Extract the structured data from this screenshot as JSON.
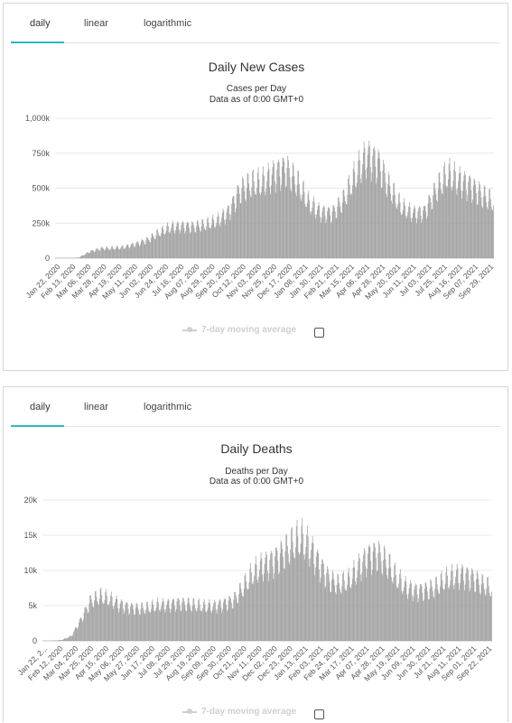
{
  "panels": [
    {
      "tabs": [
        "daily",
        "linear",
        "logarithmic"
      ],
      "active_tab": "daily",
      "legend_label": "7-day moving average",
      "chart_data": {
        "type": "bar",
        "title": "Daily New Cases",
        "subtitle_line1": "Cases per Day",
        "subtitle_line2": "Data as of 0:00 GMT+0",
        "ylim": [
          0,
          1000000
        ],
        "y_ticks": [
          0,
          250000,
          500000,
          750000,
          1000000
        ],
        "y_tick_labels": [
          "0",
          "250k",
          "500k",
          "750k",
          "1,000k"
        ],
        "x_tick_labels": [
          "Jan 22, 2020",
          "Feb 13, 2020",
          "Mar 06, 2020",
          "Mar 28, 2020",
          "Apr 19, 2020",
          "May 11, 2020",
          "Jun 02, 2020",
          "Jun 24, 2020",
          "Jul 16, 2020",
          "Aug 07, 2020",
          "Aug 29, 2020",
          "Sep 20, 2020",
          "Oct 12, 2020",
          "Nov 03, 2020",
          "Nov 25, 2020",
          "Dec 17, 2020",
          "Jan 08, 2021",
          "Jan 30, 2021",
          "Feb 21, 2021",
          "Mar 15, 2021",
          "Apr 06, 2021",
          "Apr 28, 2021",
          "May 20, 2021",
          "Jun 11, 2021",
          "Jul 03, 2021",
          "Jul 25, 2021",
          "Aug 16, 2021",
          "Sep 07, 2021",
          "Sep 29, 2021"
        ],
        "grid": true,
        "series": [
          {
            "color": "#9e9e9e",
            "period_averages": [
              1000,
              2000,
              4000,
              55000,
              80000,
              82000,
              92000,
              118000,
              150000,
              210000,
              255000,
              265000,
              262000,
              275000,
              305000,
              380000,
              560000,
              610000,
              620000,
              700000,
              740000,
              620000,
              450000,
              380000,
              370000,
              480000,
              680000,
              845000,
              790000,
              580000,
              420000,
              370000,
              380000,
              560000,
              690000,
              640000,
              600000,
              520000,
              460000
            ]
          }
        ]
      }
    },
    {
      "tabs": [
        "daily",
        "linear",
        "logarithmic"
      ],
      "active_tab": "daily",
      "legend_label": "7-day moving average",
      "chart_data": {
        "type": "bar",
        "title": "Daily Deaths",
        "subtitle_line1": "Deaths per Day",
        "subtitle_line2": "Data as of 0:00 GMT+0",
        "ylim": [
          0,
          20000
        ],
        "y_ticks": [
          0,
          5000,
          10000,
          15000,
          20000
        ],
        "y_tick_labels": [
          "0",
          "5k",
          "10k",
          "15k",
          "20k"
        ],
        "x_tick_labels": [
          "Jan 22, 2...",
          "Feb 12, 2020",
          "Mar 04, 2020",
          "Mar 25, 2020",
          "Apr 15, 2020",
          "May 06, 2020",
          "May 27, 2020",
          "Jun 17, 2020",
          "Jul 08, 2020",
          "Jul 29, 2020",
          "Aug 19, 2020",
          "Sep 09, 2020",
          "Sep 30, 2020",
          "Oct 21, 2020",
          "Nov 11, 2020",
          "Dec 02, 2020",
          "Dec 23, 2020",
          "Jan 13, 2021",
          "Feb 03, 2021",
          "Feb 24, 2021",
          "Mar 17, 2021",
          "Apr 07, 2021",
          "Apr 28, 2021",
          "May 19, 2021",
          "Jun 09, 2021",
          "Jun 30, 2021",
          "Jul 21, 2021",
          "Aug 11, 2021",
          "Sep 01, 2021",
          "Sep 22, 2021"
        ],
        "grid": true,
        "series": [
          {
            "color": "#9e9e9e",
            "period_averages": [
              20,
              40,
              150,
              800,
              3500,
              6500,
              7300,
              6800,
              6000,
              5500,
              5300,
              5400,
              5800,
              5900,
              6200,
              6100,
              5800,
              5600,
              5700,
              6100,
              6700,
              8800,
              11000,
              12300,
              13000,
              14200,
              15600,
              16800,
              15200,
              12500,
              10100,
              9200,
              9800,
              11800,
              13800,
              14300,
              12800,
              10300,
              8800,
              8200,
              8300,
              8700,
              9800,
              10500,
              10900,
              10300,
              9300,
              8500
            ]
          }
        ]
      }
    }
  ]
}
